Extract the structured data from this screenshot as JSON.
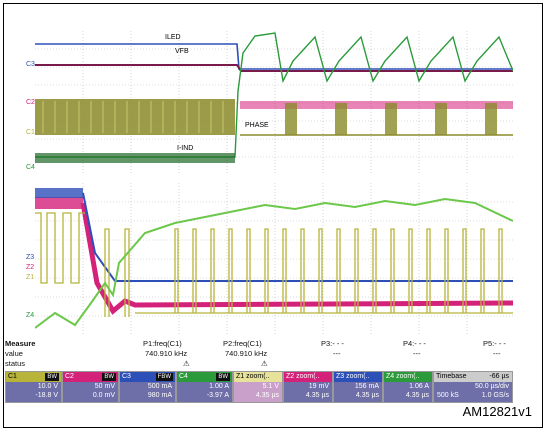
{
  "colors": {
    "ch1": "#b8b43a",
    "ch2": "#d4217a",
    "ch3": "#2d4fb8",
    "ch4": "#2a9a3a",
    "z1": "#9fd45a",
    "grid": "#aaaaaa",
    "tile_bg": "#6e6ea8"
  },
  "upper": {
    "labels": {
      "iled": "ILED",
      "vfb": "VFB",
      "phase": "PHASE",
      "lind": "I-IND"
    },
    "channel_markers": [
      "C3",
      "C2",
      "C1",
      "C4"
    ]
  },
  "lower": {
    "channel_markers": [
      "Z3",
      "Z2",
      "Z1",
      "Z4"
    ]
  },
  "measure": {
    "header": [
      "Measure",
      "P1:freq(C1)",
      "P2:freq(C1)",
      "P3:- - -",
      "P4:- - -",
      "P5:- - -"
    ],
    "value": [
      "value",
      "740.910 kHz",
      "740.910 kHz",
      "---",
      "---",
      "---"
    ],
    "status": [
      "status",
      "⚠",
      "⚠",
      "",
      "",
      ""
    ]
  },
  "tiles": [
    {
      "name": "C1",
      "tag": "BW",
      "v1": "10.0 V",
      "v2": "-18.8 V",
      "color": "#6e6ea8",
      "hdr": "#b8b43a"
    },
    {
      "name": "C2",
      "tag": "BW",
      "v1": "50 mV",
      "v2": "0.0 mV",
      "color": "#6e6ea8",
      "hdr": "#d4217a"
    },
    {
      "name": "C3",
      "tag": "FBW",
      "v1": "500 mA",
      "v2": "980 mA",
      "color": "#6e6ea8",
      "hdr": "#2d4fb8"
    },
    {
      "name": "C4",
      "tag": "BW",
      "v1": "1.00 A",
      "v2": "-3.97 A",
      "color": "#6e6ea8",
      "hdr": "#2a9a3a"
    },
    {
      "name": "Z1",
      "tag": "zoom(..",
      "v1": "5.1 V",
      "v2": "4.35 µs",
      "color": "#c9a0c9",
      "hdr": "#b8b43a"
    },
    {
      "name": "Z2",
      "tag": "zoom(..",
      "v1": "19 mV",
      "v2": "4.35 µs",
      "color": "#6e6ea8",
      "hdr": "#d4217a"
    },
    {
      "name": "Z3",
      "tag": "zoom(..",
      "v1": "156 mA",
      "v2": "4.35 µs",
      "color": "#6e6ea8",
      "hdr": "#2d4fb8"
    },
    {
      "name": "Z4",
      "tag": "zoom(..",
      "v1": "1.06 A",
      "v2": "4.35 µs",
      "color": "#6e6ea8",
      "hdr": "#2a9a3a"
    }
  ],
  "timebase": {
    "label": "Timebase",
    "offset": "-66 µs",
    "div": "50.0 µs/div",
    "samples": "500 kS",
    "rate": "1.0 GS/s"
  },
  "reference": "AM12821v1"
}
